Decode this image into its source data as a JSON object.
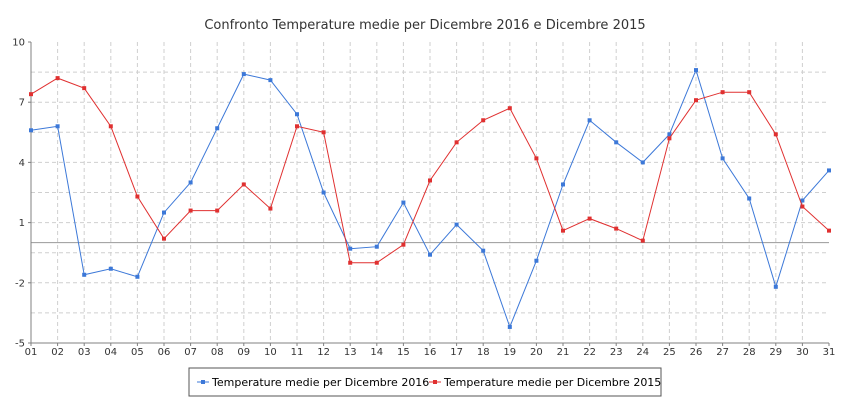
{
  "chart_data": {
    "type": "line",
    "title": "Confronto Temperature medie per Dicembre 2016 e Dicembre 2015",
    "xlabel": "",
    "ylabel": "",
    "categories": [
      "01",
      "02",
      "03",
      "04",
      "05",
      "06",
      "07",
      "08",
      "09",
      "10",
      "11",
      "12",
      "13",
      "14",
      "15",
      "16",
      "17",
      "18",
      "19",
      "20",
      "21",
      "22",
      "23",
      "24",
      "25",
      "26",
      "27",
      "28",
      "29",
      "30",
      "31"
    ],
    "ylim": [
      -5,
      10
    ],
    "y_ticks": [
      "-5",
      "-2",
      "1",
      "4",
      "7",
      "10"
    ],
    "y_tick_values": [
      -5,
      -2,
      1,
      4,
      7,
      10
    ],
    "zero_line": 0,
    "grid": true,
    "legend_position": "bottom",
    "series": [
      {
        "name": "Temperature medie per Dicembre 2016",
        "color": "#3c78d8",
        "values": [
          5.6,
          5.8,
          -1.6,
          -1.3,
          -1.7,
          1.5,
          3.0,
          5.7,
          8.4,
          8.1,
          6.4,
          2.5,
          -0.3,
          -0.2,
          2.0,
          -0.6,
          0.9,
          -0.4,
          -4.2,
          -0.9,
          2.9,
          6.1,
          5.0,
          4.0,
          5.4,
          8.6,
          4.2,
          2.2,
          -2.2,
          2.1,
          3.6
        ]
      },
      {
        "name": "Temperature medie per Dicembre 2015",
        "color": "#e03030",
        "values": [
          7.4,
          8.2,
          7.7,
          5.8,
          2.3,
          0.2,
          1.6,
          1.6,
          2.9,
          1.7,
          5.8,
          5.5,
          -1.0,
          -1.0,
          -0.1,
          3.1,
          5.0,
          6.1,
          6.7,
          4.2,
          0.6,
          1.2,
          0.7,
          0.1,
          5.2,
          7.1,
          7.5,
          7.5,
          5.4,
          1.8,
          0.6
        ]
      }
    ]
  }
}
